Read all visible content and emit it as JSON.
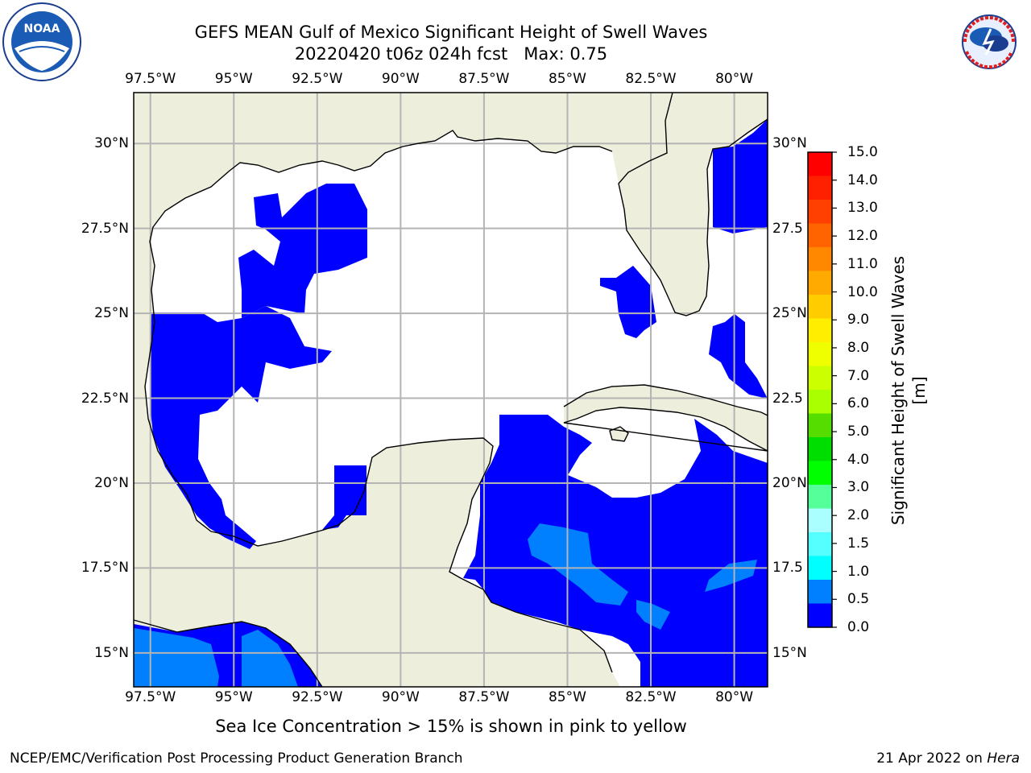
{
  "header": {
    "title_line1": "GEFS MEAN Gulf of Mexico Significant Height of Swell Waves",
    "title_line2": "20220420 t06z 024h fcst   Max: 0.75"
  },
  "logos": {
    "left": {
      "icon": "noaa-logo-icon",
      "text": "NOAA"
    },
    "right": {
      "icon": "nws-logo-icon",
      "text": "NATIONAL WEATHER SERVICE"
    }
  },
  "map": {
    "lon_range": [
      -98,
      -79
    ],
    "lat_range": [
      14,
      31.5
    ],
    "lon_ticks": [
      "97.5°W",
      "95°W",
      "92.5°W",
      "90°W",
      "87.5°W",
      "85°W",
      "82.5°W",
      "80°W"
    ],
    "lat_ticks_left": [
      "30°N",
      "27.5°N",
      "25°N",
      "22.5°N",
      "20°N",
      "17.5°N",
      "15°N"
    ],
    "lat_ticks_right": [
      "30°N",
      "27.5",
      "25°N",
      "22.5",
      "20°N",
      "17.5",
      "15°N"
    ],
    "colors": {
      "land": "#eeeedc",
      "grid": "#b4b4b4",
      "swell_low": "#0000ff",
      "swell_mid": "#0080ff"
    }
  },
  "colorbar": {
    "title": "Significant Height of Swell Waves [m]",
    "labels": [
      "15.0",
      "14.0",
      "13.0",
      "12.0",
      "11.0",
      "10.0",
      "9.0",
      "8.0",
      "7.0",
      "6.0",
      "5.0",
      "4.0",
      "3.0",
      "2.0",
      "1.5",
      "1.0",
      "0.5",
      "0.0"
    ],
    "colors_top_to_bottom": [
      "#ff0000",
      "#ff2000",
      "#ff4000",
      "#ff6400",
      "#ff8800",
      "#ffaa00",
      "#ffcc00",
      "#ffee00",
      "#f0ff00",
      "#ccff00",
      "#aaff00",
      "#55dd00",
      "#00dd00",
      "#00ff00",
      "#55ff99",
      "#aaffff",
      "#55ffff",
      "#00ffff",
      "#0080ff",
      "#0000ff"
    ]
  },
  "note": "Sea Ice Concentration > 15% is shown in pink to yellow",
  "footer": {
    "left": "NCEP/EMC/Verification Post Processing Product Generation Branch",
    "right_date": "21 Apr 2022 on ",
    "right_host": "Hera"
  }
}
